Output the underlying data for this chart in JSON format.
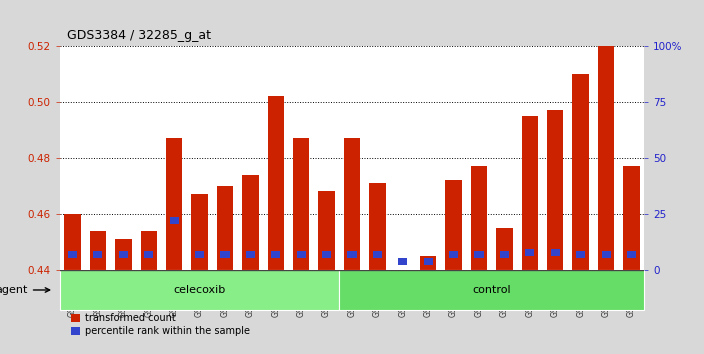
{
  "title": "GDS3384 / 32285_g_at",
  "samples": [
    "GSM283127",
    "GSM283129",
    "GSM283132",
    "GSM283134",
    "GSM283135",
    "GSM283136",
    "GSM283138",
    "GSM283142",
    "GSM283145",
    "GSM283147",
    "GSM283148",
    "GSM283128",
    "GSM283130",
    "GSM283131",
    "GSM283133",
    "GSM283137",
    "GSM283139",
    "GSM283140",
    "GSM283141",
    "GSM283143",
    "GSM283144",
    "GSM283146",
    "GSM283149"
  ],
  "transformed_count": [
    0.46,
    0.454,
    0.451,
    0.454,
    0.487,
    0.467,
    0.47,
    0.474,
    0.502,
    0.487,
    0.468,
    0.487,
    0.471,
    0.44,
    0.445,
    0.472,
    0.477,
    0.455,
    0.495,
    0.497,
    0.51,
    0.52,
    0.477
  ],
  "percentile_rank_abs": [
    0.4465,
    0.4465,
    0.4465,
    0.4465,
    0.459,
    0.4465,
    0.4465,
    0.4465,
    0.4465,
    0.4465,
    0.4465,
    0.4465,
    0.4465,
    0.444,
    0.444,
    0.4465,
    0.4465,
    0.4465,
    0.4475,
    0.4475,
    0.4465,
    0.4465,
    0.4465
  ],
  "group": [
    "celecoxib",
    "celecoxib",
    "celecoxib",
    "celecoxib",
    "celecoxib",
    "celecoxib",
    "celecoxib",
    "celecoxib",
    "celecoxib",
    "celecoxib",
    "celecoxib",
    "control",
    "control",
    "control",
    "control",
    "control",
    "control",
    "control",
    "control",
    "control",
    "control",
    "control",
    "control"
  ],
  "ylim_left": [
    0.44,
    0.52
  ],
  "yticks_left": [
    0.44,
    0.46,
    0.48,
    0.5,
    0.52
  ],
  "ytick_labels_left": [
    "0.44",
    "0.46",
    "0.48",
    "0.50",
    "0.52"
  ],
  "ylim_right": [
    0,
    100
  ],
  "yticks_right": [
    0,
    25,
    50,
    75,
    100
  ],
  "ytick_labels_right": [
    "0",
    "25",
    "50",
    "75",
    "100%"
  ],
  "bar_color_red": "#cc2200",
  "bar_color_blue": "#3344cc",
  "bg_plot": "#ffffff",
  "bg_figure": "#d8d8d8",
  "group_color_celecoxib": "#88ee88",
  "group_color_control": "#66dd66",
  "ylabel_left_color": "#cc2200",
  "ylabel_right_color": "#2222cc",
  "legend_items": [
    "transformed count",
    "percentile rank within the sample"
  ]
}
